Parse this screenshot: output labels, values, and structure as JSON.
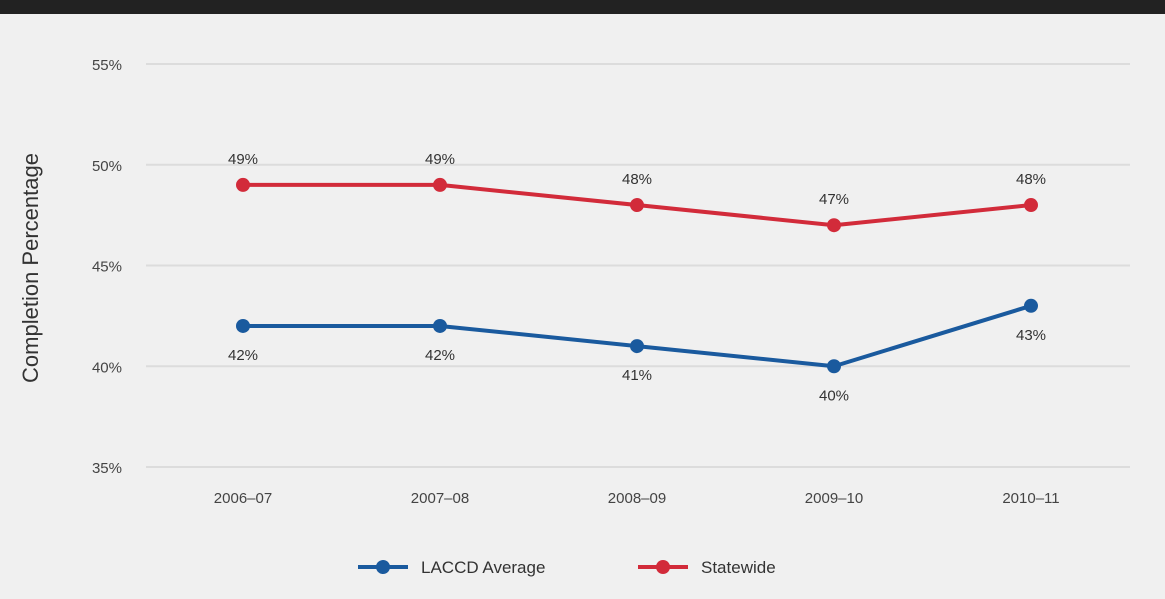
{
  "chart_data": {
    "type": "line",
    "categories": [
      "2006–07",
      "2007–08",
      "2008–09",
      "2009–10",
      "2010–11"
    ],
    "series": [
      {
        "name": "LACCD Average",
        "values": [
          42,
          42,
          41,
          40,
          43
        ],
        "labels": [
          "42%",
          "42%",
          "41%",
          "40%",
          "43%"
        ],
        "color": "#1a5a9e"
      },
      {
        "name": "Statewide",
        "values": [
          49,
          49,
          48,
          47,
          48
        ],
        "labels": [
          "49%",
          "49%",
          "48%",
          "47%",
          "48%"
        ],
        "color": "#d22b3a"
      }
    ],
    "ylabel": "Completion Percentage",
    "ylim": [
      35,
      55
    ],
    "yticks": [
      35,
      40,
      45,
      50,
      55
    ],
    "ytick_labels": [
      "35%",
      "40%",
      "45%",
      "50%",
      "55%"
    ],
    "grid": true,
    "legend_position": "bottom-center"
  },
  "colors": {
    "background": "#f0f0f0",
    "gridline": "#dcdcdc",
    "top_bar": "#222222"
  }
}
